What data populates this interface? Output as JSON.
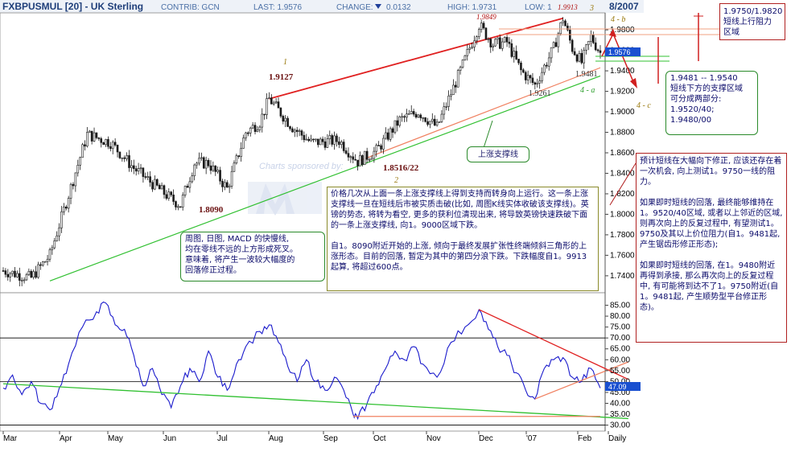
{
  "header": {
    "symbol": "FXBPUSMUL [20] - UK Sterling",
    "contrib": "CONTRIB: GCN",
    "last": "LAST: 1.9576",
    "change": "CHANGE:",
    "change_value": "0.0132",
    "high": "HIGH: 1.9731",
    "low": "LOW: 1",
    "date": "8/2007",
    "watermark": "Charts sponsored by:"
  },
  "price_labels": {
    "p1": "1.9127",
    "p2": "1.8090",
    "p3": "1.8516/22",
    "p4": "1.9849",
    "p5": "1.9913",
    "p6": "1.9481",
    "p7": "1.9261",
    "last_tag": "1.9576",
    "rsi_tag": "47.09"
  },
  "wave_labels": {
    "w1": "1",
    "w2": "2",
    "w3": "3",
    "w4b": "4 - b",
    "w4a": "4 - a",
    "w4c": "4 - c"
  },
  "notes": {
    "support_line": "上涨支撑线",
    "macd_note": "周图, 日图, MACD 的快慢线,\n均在零线不远的上方形成死叉。\n意味着, 将产生一波较大幅度的\n回落修正过程。",
    "center_note": "价格几次从上面一条上涨支撑线上得到支持而转身向上运行。这一条上涨支撑线一旦在短线后市被实质击破(比如, 周图K线实体收破该支撑线)。英镑的势态, 将转为看空, 更多的获利位清现出来, 将导致英镑快速跌破下面的一条上涨支撑线, 向1。9000区域下跌。\n\n自1。8090附近开始的上涨, 倾向于最终发展扩张性终端倾斜三角形的上涨形态。目前的回落, 暂定为其中的第四分浪下跌。下跌幅度自1。9913起算, 将超过600点。",
    "resistance_note": "1.9750/1.9820\n短线上行阻力\n区域",
    "support_note": "1.9481 -- 1.9540\n短线下方的支撑区域\n可分成两部分:\n1.9520/40;\n1.9480/00",
    "forecast_note": "预计短线在大幅向下修正, 应该还存在着一次机会, 向上测试1。9750一线的阻力。\n\n如果即时短线的回落, 最终能够维持在1。9520/40区域, 或者以上邻近的区域, 则再次向上的反复过程中, 有望测试1。9750及其以上价位阻力(自1。9481起, 产生锯齿形修正形态);\n\n如果即时短线的回落, 在1。9480附近再得到承接, 那么再次向上的反复过程中, 有可能将到达不了1。9750附近(自1。9481起, 产生顺势型平台修正形态)。"
  },
  "chart_data": [
    {
      "type": "candlestick",
      "title": "FXBPUSMUL [20] - UK Sterling",
      "y_ticks": [
        "1.9800",
        "1.9600",
        "1.9400",
        "1.9200",
        "1.9000",
        "1.8800",
        "1.8600",
        "1.8400",
        "1.8200",
        "1.8000",
        "1.7800",
        "1.7600",
        "1.7400"
      ],
      "ylim": [
        1.725,
        1.995
      ],
      "x_ticks": [
        "Mar",
        "Apr",
        "May",
        "Jun",
        "Jul",
        "Aug",
        "Sep",
        "Oct",
        "Nov",
        "Dec",
        "'07",
        "Feb",
        "Daily"
      ],
      "key_points": [
        {
          "t": 0,
          "y": 1.745
        },
        {
          "t": 12,
          "y": 1.738
        },
        {
          "t": 20,
          "y": 1.76
        },
        {
          "t": 36,
          "y": 1.878
        },
        {
          "t": 46,
          "y": 1.87
        },
        {
          "t": 56,
          "y": 1.845
        },
        {
          "t": 64,
          "y": 1.83
        },
        {
          "t": 72,
          "y": 1.815
        },
        {
          "t": 76,
          "y": 1.809
        },
        {
          "t": 82,
          "y": 1.85
        },
        {
          "t": 88,
          "y": 1.85
        },
        {
          "t": 96,
          "y": 1.825
        },
        {
          "t": 104,
          "y": 1.88
        },
        {
          "t": 110,
          "y": 1.89
        },
        {
          "t": 114,
          "y": 1.9127
        },
        {
          "t": 124,
          "y": 1.885
        },
        {
          "t": 132,
          "y": 1.87
        },
        {
          "t": 144,
          "y": 1.872
        },
        {
          "t": 152,
          "y": 1.8516
        },
        {
          "t": 160,
          "y": 1.862
        },
        {
          "t": 170,
          "y": 1.892
        },
        {
          "t": 178,
          "y": 1.9
        },
        {
          "t": 186,
          "y": 1.885
        },
        {
          "t": 196,
          "y": 1.94
        },
        {
          "t": 204,
          "y": 1.9849
        },
        {
          "t": 210,
          "y": 1.966
        },
        {
          "t": 216,
          "y": 1.968
        },
        {
          "t": 222,
          "y": 1.94
        },
        {
          "t": 228,
          "y": 1.9261
        },
        {
          "t": 236,
          "y": 1.962
        },
        {
          "t": 240,
          "y": 1.9913
        },
        {
          "t": 244,
          "y": 1.962
        },
        {
          "t": 248,
          "y": 1.9481
        },
        {
          "t": 252,
          "y": 1.973
        },
        {
          "t": 256,
          "y": 1.9576
        }
      ],
      "lines": {
        "resistance": [
          {
            "t": 114,
            "y": 1.9127
          },
          {
            "t": 240,
            "y": 1.9913
          }
        ],
        "support_upper": [
          {
            "t": 152,
            "y": 1.8516
          },
          {
            "t": 256,
            "y": 1.943
          }
        ],
        "support_lower": [
          {
            "t": 20,
            "y": 1.735
          },
          {
            "t": 256,
            "y": 1.935
          }
        ]
      },
      "colors": {
        "candle": "#1a1a1a",
        "resistance": "#e02020",
        "support": "#30c030",
        "support_orange": "#f08060",
        "last_tag_bg": "#1a50d0"
      }
    },
    {
      "type": "line",
      "title": "",
      "y_ticks": [
        "85.00",
        "80.00",
        "75.00",
        "70.00",
        "65.00",
        "60.00",
        "55.00",
        "50.00",
        "45.00",
        "40.00",
        "35.00",
        "30.00"
      ],
      "ylim": [
        28,
        90
      ],
      "reference_lines": [
        30,
        50,
        70
      ],
      "points": [
        {
          "t": 0,
          "v": 47
        },
        {
          "t": 4,
          "v": 53
        },
        {
          "t": 8,
          "v": 44
        },
        {
          "t": 12,
          "v": 50
        },
        {
          "t": 16,
          "v": 40
        },
        {
          "t": 20,
          "v": 37
        },
        {
          "t": 24,
          "v": 47
        },
        {
          "t": 28,
          "v": 58
        },
        {
          "t": 34,
          "v": 75
        },
        {
          "t": 40,
          "v": 82
        },
        {
          "t": 44,
          "v": 86
        },
        {
          "t": 48,
          "v": 76
        },
        {
          "t": 52,
          "v": 74
        },
        {
          "t": 56,
          "v": 62
        },
        {
          "t": 60,
          "v": 48
        },
        {
          "t": 64,
          "v": 56
        },
        {
          "t": 68,
          "v": 44
        },
        {
          "t": 72,
          "v": 38
        },
        {
          "t": 76,
          "v": 48
        },
        {
          "t": 80,
          "v": 56
        },
        {
          "t": 84,
          "v": 50
        },
        {
          "t": 88,
          "v": 64
        },
        {
          "t": 92,
          "v": 52
        },
        {
          "t": 96,
          "v": 46
        },
        {
          "t": 100,
          "v": 58
        },
        {
          "t": 104,
          "v": 66
        },
        {
          "t": 110,
          "v": 73
        },
        {
          "t": 114,
          "v": 76
        },
        {
          "t": 118,
          "v": 68
        },
        {
          "t": 122,
          "v": 57
        },
        {
          "t": 126,
          "v": 50
        },
        {
          "t": 130,
          "v": 60
        },
        {
          "t": 134,
          "v": 50
        },
        {
          "t": 138,
          "v": 46
        },
        {
          "t": 142,
          "v": 52
        },
        {
          "t": 146,
          "v": 46
        },
        {
          "t": 150,
          "v": 35
        },
        {
          "t": 152,
          "v": 33
        },
        {
          "t": 156,
          "v": 40
        },
        {
          "t": 160,
          "v": 48
        },
        {
          "t": 164,
          "v": 56
        },
        {
          "t": 168,
          "v": 64
        },
        {
          "t": 172,
          "v": 60
        },
        {
          "t": 176,
          "v": 66
        },
        {
          "t": 180,
          "v": 58
        },
        {
          "t": 186,
          "v": 52
        },
        {
          "t": 192,
          "v": 68
        },
        {
          "t": 198,
          "v": 75
        },
        {
          "t": 204,
          "v": 83
        },
        {
          "t": 208,
          "v": 74
        },
        {
          "t": 212,
          "v": 66
        },
        {
          "t": 216,
          "v": 62
        },
        {
          "t": 220,
          "v": 54
        },
        {
          "t": 224,
          "v": 46
        },
        {
          "t": 228,
          "v": 42
        },
        {
          "t": 232,
          "v": 56
        },
        {
          "t": 236,
          "v": 60
        },
        {
          "t": 240,
          "v": 61
        },
        {
          "t": 244,
          "v": 52
        },
        {
          "t": 248,
          "v": 50
        },
        {
          "t": 252,
          "v": 56
        },
        {
          "t": 256,
          "v": 47
        }
      ],
      "trend_lines": {
        "red": [
          {
            "t": 204,
            "v": 83
          },
          {
            "t": 268,
            "v": 51
          }
        ],
        "orange": [
          {
            "t": 228,
            "v": 42
          },
          {
            "t": 268,
            "v": 59
          }
        ],
        "green": [
          {
            "t": 0,
            "v": 49
          },
          {
            "t": 268,
            "v": 33
          }
        ],
        "orange_flat": [
          {
            "t": 150,
            "v": 34
          },
          {
            "t": 256,
            "v": 34
          }
        ]
      },
      "colors": {
        "line": "#1a1acc",
        "red": "#e02020",
        "green": "#30c030",
        "orange": "#f08060"
      }
    }
  ]
}
